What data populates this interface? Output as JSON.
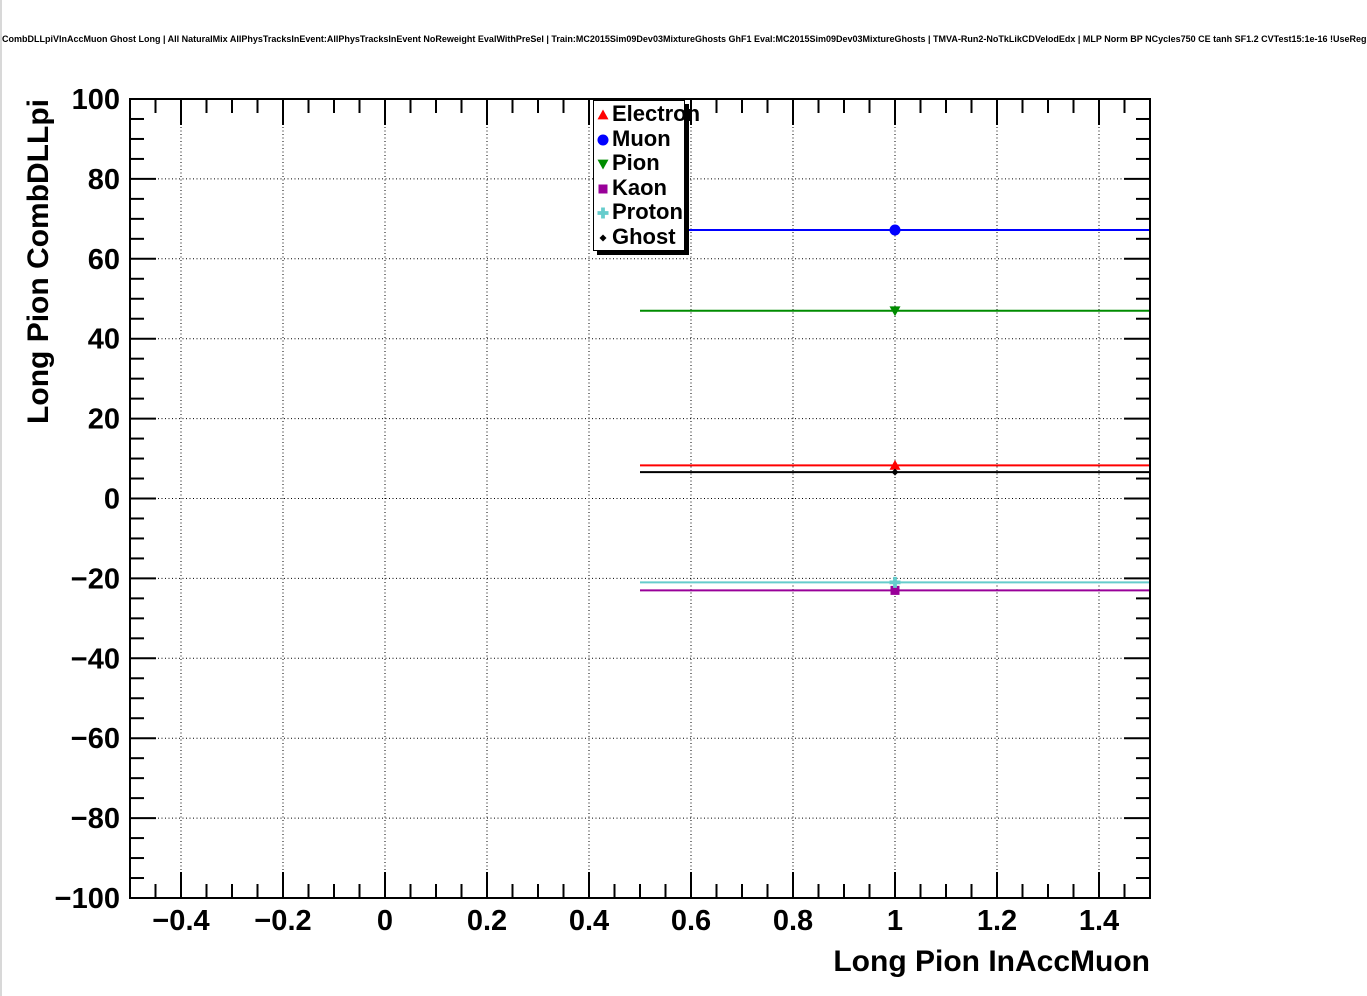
{
  "title": "CombDLLpiVInAccMuon Ghost Long | All NaturalMix AllPhysTracksInEvent:AllPhysTracksInEvent NoReweight EvalWithPreSel | Train:MC2015Sim09Dev03MixtureGhosts GhF1 Eval:MC2015Sim09Dev03MixtureGhosts | TMVA-Run2-NoTkLikCDVelodEdx | MLP Norm BP NCycles750 CE tanh SF1.2 CVTest15:1e-16 !UseReg",
  "colors": {
    "background": "#ffffff",
    "frame": "#000000",
    "grid": "#000000",
    "electron": "#ff0000",
    "muon": "#0000ff",
    "pion": "#008c00",
    "kaon": "#990099",
    "proton": "#66cccc",
    "ghost": "#000000"
  },
  "chart_data": {
    "type": "scatter",
    "title": "CombDLLpiVInAccMuon Ghost Long | All NaturalMix AllPhysTracksInEvent:AllPhysTracksInEvent NoReweight EvalWithPreSel | Train:MC2015Sim09Dev03MixtureGhosts GhF1 Eval:MC2015Sim09Dev03MixtureGhosts | TMVA-Run2-NoTkLikCDVelodEdx | MLP Norm BP NCycles750 CE tanh SF1.2 CVTest15:1e-16 !UseReg",
    "xlabel": "Long Pion InAccMuon",
    "ylabel": "Long Pion CombDLLpi",
    "xlim": [
      -0.5,
      1.5
    ],
    "ylim": [
      -100,
      100
    ],
    "grid": "dotted-at-major-ticks",
    "legend_position": "top-center",
    "x_major_ticks": [
      -0.4,
      -0.2,
      0,
      0.2,
      0.4,
      0.6,
      0.8,
      1,
      1.2,
      1.4
    ],
    "x_tick_labels": [
      "−0.4",
      "−0.2",
      "0",
      "0.2",
      "0.4",
      "0.6",
      "0.8",
      "1",
      "1.2",
      "1.4"
    ],
    "x_minor_step": 0.05,
    "y_major_ticks": [
      100,
      80,
      60,
      40,
      20,
      0,
      -20,
      -40,
      -60,
      -80,
      -100
    ],
    "y_tick_labels": [
      "100",
      "80",
      "60",
      "40",
      "20",
      "0",
      "−20",
      "−40",
      "−60",
      "−80",
      "−100"
    ],
    "y_minor_step": 5,
    "series": [
      {
        "name": "Electron",
        "color": "#ff0000",
        "marker": "triangle-up",
        "marker_size": 11,
        "x": 1,
        "y": 8.3,
        "xlow": 0.5,
        "xhigh": 1.5
      },
      {
        "name": "Muon",
        "color": "#0000ff",
        "marker": "circle",
        "marker_size": 11,
        "x": 1,
        "y": 67.2,
        "xlow": 0.5,
        "xhigh": 1.5
      },
      {
        "name": "Pion",
        "color": "#008c00",
        "marker": "triangle-down",
        "marker_size": 11,
        "x": 1,
        "y": 47,
        "xlow": 0.5,
        "xhigh": 1.5
      },
      {
        "name": "Kaon",
        "color": "#990099",
        "marker": "square",
        "marker_size": 9,
        "x": 1,
        "y": -23,
        "xlow": 0.5,
        "xhigh": 1.5
      },
      {
        "name": "Proton",
        "color": "#66cccc",
        "marker": "cross",
        "marker_size": 11,
        "x": 1,
        "y": -21,
        "xlow": 0.5,
        "xhigh": 1.5
      },
      {
        "name": "Ghost",
        "color": "#000000",
        "marker": "diamond",
        "marker_size": 7,
        "x": 1,
        "y": 6.6,
        "xlow": 0.5,
        "xhigh": 1.5
      }
    ]
  }
}
